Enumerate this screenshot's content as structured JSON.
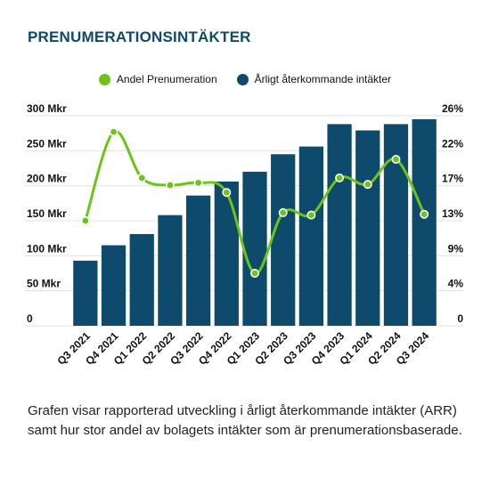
{
  "title": "PRENUMERATIONSINTÄKTER",
  "caption": "Grafen visar rapporterad utveckling i årligt återkommande intäkter (ARR) samt hur stor andel av bolagets intäkter som är prenumerationsbaserade.",
  "colors": {
    "bar": "#0d4a6b",
    "line": "#6cc417",
    "title": "#0d4a6b"
  },
  "chart_data": {
    "type": "bar",
    "categories": [
      "Q3 2021",
      "Q4 2021",
      "Q1 2022",
      "Q2 2022",
      "Q3 2022",
      "Q4 2022",
      "Q1 2023",
      "Q2 2023",
      "Q3 2023",
      "Q4 2023",
      "Q1 2024",
      "Q2 2024",
      "Q3 2024"
    ],
    "series": [
      {
        "name": "Årligt återkommande intäkter",
        "type": "bar",
        "axis": "left",
        "values": [
          93,
          115,
          131,
          158,
          186,
          206,
          220,
          245,
          256,
          288,
          279,
          288,
          295
        ]
      },
      {
        "name": "Andel Prenumeration",
        "type": "line",
        "axis": "right",
        "values": [
          13.0,
          24.0,
          18.3,
          17.4,
          17.7,
          16.5,
          6.5,
          14.0,
          13.7,
          18.3,
          17.5,
          20.6,
          13.8
        ]
      }
    ],
    "left_axis": {
      "ticks": [
        "0",
        "50 Mkr",
        "100 Mkr",
        "150 Mkr",
        "200 Mkr",
        "250 Mkr",
        "300 Mkr"
      ],
      "ylim": [
        0,
        300
      ]
    },
    "right_axis": {
      "ticks": [
        "0",
        "4%",
        "9%",
        "13%",
        "17%",
        "22%",
        "26%"
      ],
      "ylim": [
        0,
        26
      ]
    },
    "legend_position": "top-center",
    "grid": true
  }
}
